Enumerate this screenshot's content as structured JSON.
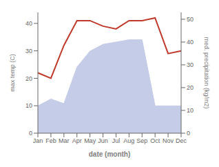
{
  "chart_data": {
    "type": "line",
    "categories": [
      "Jan",
      "Feb",
      "Mar",
      "Apr",
      "May",
      "Jun",
      "Jul",
      "Aug",
      "Sep",
      "Oct",
      "Nov",
      "Dec"
    ],
    "series": [
      {
        "type": "area",
        "axis": "y2",
        "color": "#c5cce8",
        "values": [
          12,
          15,
          13,
          29,
          36,
          39,
          40,
          41,
          41,
          12,
          12,
          12
        ]
      },
      {
        "type": "line",
        "axis": "y",
        "color": "#c0392b",
        "values": [
          22,
          20,
          32,
          41,
          41,
          39,
          38,
          41,
          41,
          42,
          29,
          30
        ]
      }
    ],
    "xlabel": "date (month)",
    "ylabel": "max temp (C)",
    "y2label": "med. precipitation (kg/m2)",
    "ylim": [
      0,
      44
    ],
    "yticks": [
      0,
      10,
      20,
      30,
      40
    ],
    "y2lim": [
      0,
      53
    ],
    "y2ticks": [
      0,
      10,
      20,
      30,
      40,
      50
    ],
    "grid": false
  }
}
